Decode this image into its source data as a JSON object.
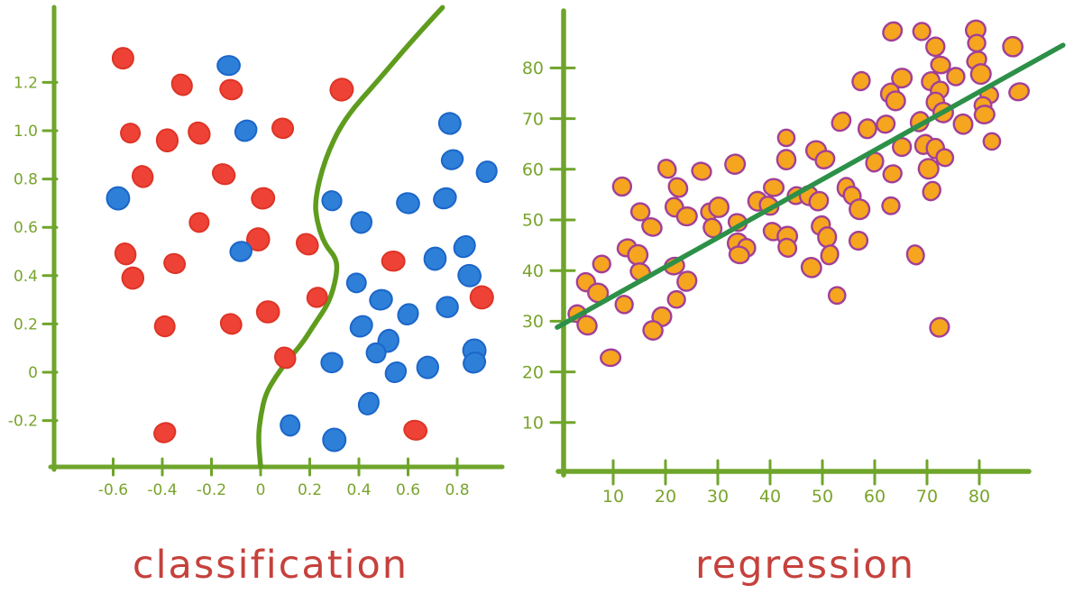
{
  "page": {
    "background": "#ffffff"
  },
  "colors": {
    "axis_green": "#6fa52b",
    "label_green": "#79a42c",
    "boundary_green": "#5f9c1e",
    "regression_green": "#2d9048",
    "red_dot": "#ee4237",
    "red_dot_outline": "#dd3426",
    "blue_dot": "#2e7fd8",
    "blue_dot_outline": "#1b66c9",
    "orange_dot": "#f5a51e",
    "orange_dot_outline": "#a23f97",
    "title_red": "#c6413c"
  },
  "chart_data": [
    {
      "type": "scatter",
      "title": "classification",
      "xlabel": "",
      "ylabel": "",
      "grid": false,
      "legend": null,
      "xlim": [
        -0.84,
        0.98
      ],
      "ylim": [
        -0.39,
        1.5
      ],
      "x_tick_values": [
        -0.6,
        -0.4,
        -0.2,
        0,
        0.2,
        0.4,
        0.6,
        0.8
      ],
      "x_tick_labels": [
        "-0.6",
        "-0.4",
        "-0.2",
        "0",
        "0.2",
        "0.4",
        "0.6",
        "0.8"
      ],
      "y_tick_values": [
        1.2,
        1.0,
        0.8,
        0.6,
        0.4,
        0.2,
        0,
        -0.2
      ],
      "y_tick_labels": [
        "1.2",
        "1.0",
        "0.8",
        "0.6",
        "0.4",
        "0.2",
        "0",
        "-0.2"
      ],
      "series": [
        {
          "name": "class red",
          "color_key": "red_dot",
          "outline_key": "red_dot_outline",
          "points": [
            [
              -0.56,
              1.3
            ],
            [
              -0.32,
              1.19
            ],
            [
              -0.12,
              1.17
            ],
            [
              0.33,
              1.17
            ],
            [
              -0.53,
              0.99
            ],
            [
              -0.38,
              0.96
            ],
            [
              -0.25,
              0.99
            ],
            [
              0.09,
              1.01
            ],
            [
              -0.48,
              0.81
            ],
            [
              -0.15,
              0.82
            ],
            [
              0.01,
              0.72
            ],
            [
              -0.25,
              0.62
            ],
            [
              -0.01,
              0.55
            ],
            [
              -0.55,
              0.49
            ],
            [
              -0.35,
              0.45
            ],
            [
              -0.52,
              0.39
            ],
            [
              0.19,
              0.53
            ],
            [
              0.54,
              0.46
            ],
            [
              0.23,
              0.31
            ],
            [
              0.9,
              0.31
            ],
            [
              -0.39,
              0.19
            ],
            [
              -0.12,
              0.2
            ],
            [
              0.03,
              0.25
            ],
            [
              0.1,
              0.06
            ],
            [
              0.63,
              -0.24
            ],
            [
              -0.39,
              -0.25
            ]
          ]
        },
        {
          "name": "class blue",
          "color_key": "blue_dot",
          "outline_key": "blue_dot_outline",
          "points": [
            [
              -0.13,
              1.27
            ],
            [
              -0.06,
              1.0
            ],
            [
              0.77,
              1.03
            ],
            [
              0.78,
              0.88
            ],
            [
              0.92,
              0.83
            ],
            [
              -0.58,
              0.72
            ],
            [
              0.29,
              0.71
            ],
            [
              0.6,
              0.7
            ],
            [
              0.75,
              0.72
            ],
            [
              0.41,
              0.62
            ],
            [
              -0.08,
              0.5
            ],
            [
              0.83,
              0.52
            ],
            [
              0.71,
              0.47
            ],
            [
              0.39,
              0.37
            ],
            [
              0.85,
              0.4
            ],
            [
              0.49,
              0.3
            ],
            [
              0.6,
              0.24
            ],
            [
              0.76,
              0.27
            ],
            [
              0.41,
              0.19
            ],
            [
              0.52,
              0.13
            ],
            [
              0.47,
              0.08
            ],
            [
              0.87,
              0.09
            ],
            [
              0.29,
              0.04
            ],
            [
              0.55,
              0.0
            ],
            [
              0.68,
              0.02
            ],
            [
              0.87,
              0.04
            ],
            [
              0.44,
              -0.13
            ],
            [
              0.12,
              -0.22
            ],
            [
              0.3,
              -0.28
            ]
          ]
        }
      ],
      "decision_boundary": {
        "color_key": "boundary_green",
        "points": [
          [
            0.74,
            1.51
          ],
          [
            0.63,
            1.39
          ],
          [
            0.48,
            1.21
          ],
          [
            0.34,
            1.05
          ],
          [
            0.26,
            0.88
          ],
          [
            0.22,
            0.71
          ],
          [
            0.23,
            0.62
          ],
          [
            0.26,
            0.53
          ],
          [
            0.31,
            0.47
          ],
          [
            0.31,
            0.4
          ],
          [
            0.28,
            0.29
          ],
          [
            0.22,
            0.2
          ],
          [
            0.17,
            0.12
          ],
          [
            0.11,
            0.05
          ],
          [
            0.06,
            -0.02
          ],
          [
            0.02,
            -0.09
          ],
          [
            0.0,
            -0.18
          ],
          [
            -0.01,
            -0.27
          ],
          [
            0.0,
            -0.39
          ]
        ]
      }
    },
    {
      "type": "scatter",
      "title": "regression",
      "xlabel": "",
      "ylabel": "",
      "grid": false,
      "legend": null,
      "xlim": [
        0,
        89.5
      ],
      "ylim": [
        0,
        91.3
      ],
      "x_tick_values": [
        10,
        20,
        30,
        40,
        50,
        60,
        70,
        80
      ],
      "x_tick_labels": [
        "10",
        "20",
        "30",
        "40",
        "50",
        "60",
        "70",
        "80"
      ],
      "y_tick_values": [
        80,
        70,
        60,
        50,
        40,
        30,
        20,
        10
      ],
      "y_tick_labels": [
        "80",
        "70",
        "60",
        "50",
        "40",
        "30",
        "20",
        "10"
      ],
      "series": [
        {
          "name": "samples",
          "color_key": "orange_dot",
          "outline_key": "orange_dot_outline",
          "points": [
            [
              11.7,
              56.6
            ],
            [
              20.3,
              60.1
            ],
            [
              26.9,
              59.6
            ],
            [
              33.3,
              61.0
            ],
            [
              43.1,
              66.2
            ],
            [
              43.1,
              61.9
            ],
            [
              22.4,
              56.4
            ],
            [
              15.2,
              51.6
            ],
            [
              21.7,
              52.5
            ],
            [
              17.4,
              48.6
            ],
            [
              24.1,
              50.7
            ],
            [
              28.4,
              51.6
            ],
            [
              30.2,
              52.5
            ],
            [
              29.0,
              48.4
            ],
            [
              33.8,
              49.5
            ],
            [
              37.6,
              53.7
            ],
            [
              39.8,
              52.8
            ],
            [
              40.7,
              56.4
            ],
            [
              45.0,
              54.8
            ],
            [
              33.8,
              45.4
            ],
            [
              35.5,
              44.5
            ],
            [
              40.5,
              47.7
            ],
            [
              43.3,
              46.8
            ],
            [
              43.3,
              44.5
            ],
            [
              34.1,
              43.1
            ],
            [
              12.6,
              44.5
            ],
            [
              14.7,
              43.1
            ],
            [
              7.8,
              41.3
            ],
            [
              4.8,
              37.7
            ],
            [
              7.1,
              35.6
            ],
            [
              12.1,
              33.3
            ],
            [
              15.2,
              39.7
            ],
            [
              21.7,
              40.9
            ],
            [
              24.1,
              37.9
            ],
            [
              22.1,
              34.3
            ],
            [
              19.3,
              30.9
            ],
            [
              17.6,
              28.2
            ],
            [
              3.1,
              31.5
            ],
            [
              5.0,
              29.2
            ],
            [
              9.5,
              22.8
            ],
            [
              63.4,
              87.2
            ],
            [
              69.0,
              87.2
            ],
            [
              79.3,
              87.5
            ],
            [
              71.6,
              84.2
            ],
            [
              79.5,
              84.9
            ],
            [
              86.4,
              84.2
            ],
            [
              72.6,
              80.6
            ],
            [
              79.5,
              81.5
            ],
            [
              57.4,
              77.4
            ],
            [
              65.2,
              78.0
            ],
            [
              70.7,
              77.4
            ],
            [
              75.5,
              78.3
            ],
            [
              80.3,
              78.8
            ],
            [
              81.9,
              74.7
            ],
            [
              87.6,
              75.3
            ],
            [
              62.9,
              75.1
            ],
            [
              64.0,
              73.5
            ],
            [
              72.4,
              75.6
            ],
            [
              71.6,
              73.3
            ],
            [
              73.1,
              71.2
            ],
            [
              80.7,
              72.6
            ],
            [
              81.0,
              70.8
            ],
            [
              53.6,
              69.4
            ],
            [
              58.6,
              68.0
            ],
            [
              62.1,
              68.9
            ],
            [
              68.6,
              69.4
            ],
            [
              76.9,
              68.9
            ],
            [
              82.4,
              65.5
            ],
            [
              48.8,
              63.7
            ],
            [
              50.5,
              61.9
            ],
            [
              60.0,
              61.4
            ],
            [
              65.2,
              64.4
            ],
            [
              69.5,
              64.9
            ],
            [
              71.6,
              64.1
            ],
            [
              73.4,
              62.3
            ],
            [
              70.3,
              60.1
            ],
            [
              63.4,
              59.1
            ],
            [
              70.9,
              55.7
            ],
            [
              47.4,
              54.8
            ],
            [
              49.3,
              53.7
            ],
            [
              54.5,
              56.4
            ],
            [
              55.7,
              54.8
            ],
            [
              57.1,
              52.1
            ],
            [
              63.1,
              52.8
            ],
            [
              49.7,
              48.9
            ],
            [
              50.9,
              46.6
            ],
            [
              56.9,
              45.9
            ],
            [
              51.4,
              43.1
            ],
            [
              67.8,
              43.1
            ],
            [
              47.9,
              40.6
            ],
            [
              52.8,
              35.1
            ],
            [
              72.4,
              28.8
            ]
          ]
        }
      ],
      "regression_line": {
        "color_key": "regression_green",
        "x1": -0.7,
        "y1": 28.8,
        "x2": 96.0,
        "y2": 84.5
      }
    }
  ]
}
